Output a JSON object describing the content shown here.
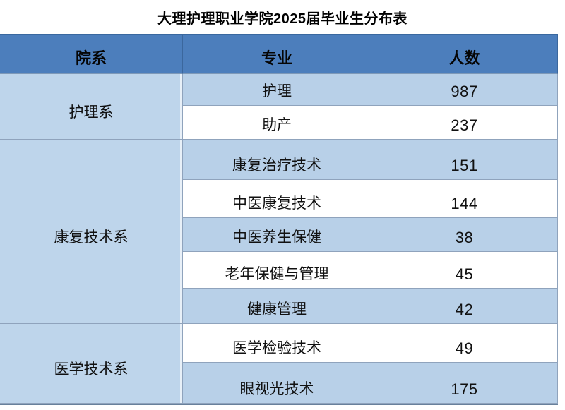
{
  "title": "大理护理职业学院2025届毕业生分布表",
  "table": {
    "headers": [
      "院系",
      "专业",
      "人数"
    ],
    "groups": [
      {
        "department": "护理系",
        "rows": [
          {
            "major": "护理",
            "count": "987"
          },
          {
            "major": "助产",
            "count": "237"
          }
        ]
      },
      {
        "department": "康复技术系",
        "rows": [
          {
            "major": "康复治疗技术",
            "count": "151"
          },
          {
            "major": "中医康复技术",
            "count": "144"
          },
          {
            "major": "中医养生保健",
            "count": "38"
          },
          {
            "major": "老年保健与管理",
            "count": "45"
          },
          {
            "major": "健康管理",
            "count": "42"
          }
        ]
      },
      {
        "department": "医学技术系",
        "rows": [
          {
            "major": "医学检验技术",
            "count": "49"
          },
          {
            "major": "眼视光技术",
            "count": "175"
          }
        ]
      }
    ]
  },
  "colors": {
    "header_bg": "#4C7EBC",
    "department_bg": "#BED5EB",
    "band_row_bg": "#B8D0E8",
    "white_row_bg": "#FFFFFF",
    "inner_border": "#8FA3BC",
    "top_border": "#3A689F",
    "bottom_border": "#68809B",
    "text": "#111111"
  }
}
